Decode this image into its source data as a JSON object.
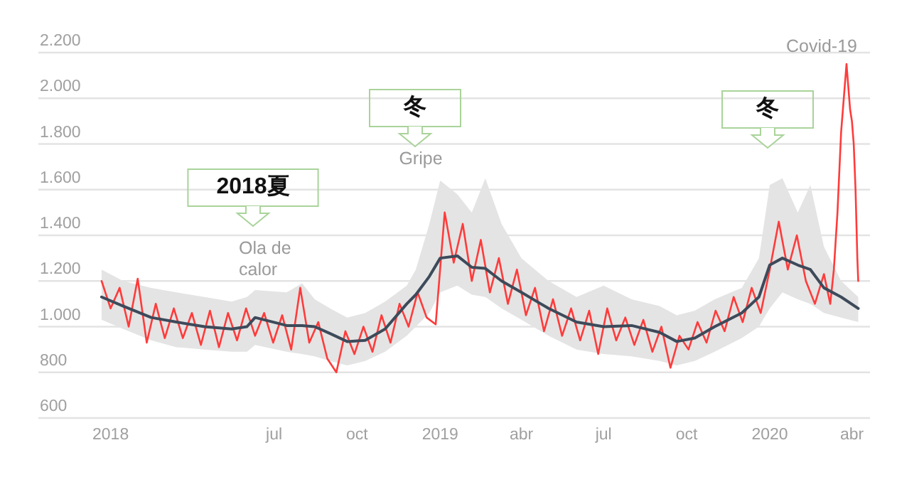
{
  "chart_data": {
    "type": "line",
    "xlim": [
      "2017-10-13",
      "2020-04-21"
    ],
    "ylim": [
      600,
      2200
    ],
    "xticks": [
      {
        "value": "2018-01-01",
        "label": "2018"
      },
      {
        "value": "2018-07-01",
        "label": "jul"
      },
      {
        "value": "2018-10-01",
        "label": "oct"
      },
      {
        "value": "2019-01-01",
        "label": "2019"
      },
      {
        "value": "2019-04-01",
        "label": "abr"
      },
      {
        "value": "2019-07-01",
        "label": "jul"
      },
      {
        "value": "2019-10-01",
        "label": "oct"
      },
      {
        "value": "2020-01-01",
        "label": "2020"
      },
      {
        "value": "2020-04-01",
        "label": "abr"
      }
    ],
    "yticks": [
      600,
      800,
      {
        "value": 1000,
        "label": "1.000"
      },
      {
        "value": 1200,
        "label": "1.200"
      },
      {
        "value": 1400,
        "label": "1.400"
      },
      {
        "value": 1600,
        "label": "1.600"
      },
      {
        "value": 1800,
        "label": "1.800"
      },
      {
        "value": 2000,
        "label": "2.000"
      },
      {
        "value": 2200,
        "label": "2.200"
      }
    ],
    "grid": "y",
    "annotations": [
      "2018夏",
      "Ola de calor",
      "冬",
      "Gripe",
      "冬",
      "Covid-19"
    ],
    "series": [
      {
        "color": "#ff3b3b",
        "x": [
          "2017-12-22",
          "2018-01-01",
          "2018-01-11",
          "2018-01-21",
          "2018-01-31",
          "2018-02-10",
          "2018-02-20",
          "2018-03-02",
          "2018-03-12",
          "2018-03-22",
          "2018-04-01",
          "2018-04-11",
          "2018-04-21",
          "2018-05-01",
          "2018-05-11",
          "2018-05-21",
          "2018-05-31",
          "2018-06-10",
          "2018-06-20",
          "2018-06-30",
          "2018-07-10",
          "2018-07-20",
          "2018-07-30",
          "2018-08-09",
          "2018-08-19",
          "2018-08-29",
          "2018-09-08",
          "2018-09-18",
          "2018-09-28",
          "2018-10-08",
          "2018-10-18",
          "2018-10-28",
          "2018-11-07",
          "2018-11-17",
          "2018-11-27",
          "2018-12-07",
          "2018-12-17",
          "2018-12-27",
          "2019-01-06",
          "2019-01-16",
          "2019-01-26",
          "2019-02-05",
          "2019-02-15",
          "2019-02-25",
          "2019-03-07",
          "2019-03-17",
          "2019-03-27",
          "2019-04-06",
          "2019-04-16",
          "2019-04-26",
          "2019-05-06",
          "2019-05-16",
          "2019-05-26",
          "2019-06-05",
          "2019-06-15",
          "2019-06-25",
          "2019-07-05",
          "2019-07-15",
          "2019-07-25",
          "2019-08-04",
          "2019-08-14",
          "2019-08-24",
          "2019-09-03",
          "2019-09-13",
          "2019-09-23",
          "2019-10-03",
          "2019-10-13",
          "2019-10-23",
          "2019-11-02",
          "2019-11-12",
          "2019-11-22",
          "2019-12-02",
          "2019-12-12",
          "2019-12-22",
          "2020-01-01",
          "2020-01-11",
          "2020-01-21",
          "2020-01-31",
          "2020-02-10",
          "2020-02-20",
          "2020-03-01",
          "2020-03-08",
          "2020-03-12",
          "2020-03-16",
          "2020-03-20",
          "2020-03-24",
          "2020-03-26",
          "2020-03-28",
          "2020-03-30",
          "2020-04-01",
          "2020-04-03",
          "2020-04-05",
          "2020-04-07",
          "2020-04-08"
        ],
        "values": [
          1200,
          1080,
          1170,
          1000,
          1210,
          930,
          1100,
          950,
          1080,
          950,
          1060,
          920,
          1070,
          910,
          1060,
          940,
          1080,
          960,
          1060,
          930,
          1050,
          900,
          1170,
          930,
          1020,
          860,
          800,
          980,
          880,
          1000,
          890,
          1050,
          930,
          1100,
          1000,
          1150,
          1040,
          1010,
          1500,
          1280,
          1450,
          1200,
          1380,
          1150,
          1300,
          1100,
          1250,
          1050,
          1170,
          980,
          1120,
          960,
          1080,
          940,
          1070,
          880,
          1080,
          940,
          1040,
          920,
          1030,
          890,
          1000,
          820,
          960,
          900,
          1020,
          930,
          1070,
          980,
          1130,
          1020,
          1170,
          1060,
          1250,
          1460,
          1250,
          1400,
          1200,
          1100,
          1230,
          1100,
          1250,
          1500,
          1850,
          2050,
          2150,
          2050,
          1950,
          1900,
          1800,
          1600,
          1300,
          1200
        ]
      },
      {
        "color": "#3d4a5a",
        "x": [
          "2017-12-22",
          "2018-01-15",
          "2018-02-15",
          "2018-03-15",
          "2018-04-15",
          "2018-05-15",
          "2018-06-01",
          "2018-06-10",
          "2018-07-15",
          "2018-08-01",
          "2018-08-15",
          "2018-09-01",
          "2018-09-20",
          "2018-10-10",
          "2018-11-01",
          "2018-11-25",
          "2018-12-05",
          "2018-12-20",
          "2019-01-01",
          "2019-01-20",
          "2019-02-05",
          "2019-02-20",
          "2019-03-10",
          "2019-04-01",
          "2019-05-01",
          "2019-06-01",
          "2019-07-01",
          "2019-08-01",
          "2019-09-01",
          "2019-09-20",
          "2019-10-10",
          "2019-11-01",
          "2019-12-01",
          "2019-12-20",
          "2020-01-01",
          "2020-01-15",
          "2020-02-01",
          "2020-02-15",
          "2020-03-01",
          "2020-03-20",
          "2020-04-08"
        ],
        "values": [
          1130,
          1090,
          1040,
          1020,
          1000,
          990,
          1000,
          1040,
          1005,
          1005,
          1000,
          970,
          935,
          940,
          990,
          1100,
          1140,
          1220,
          1300,
          1310,
          1260,
          1255,
          1200,
          1150,
          1080,
          1020,
          1000,
          1005,
          975,
          935,
          950,
          1000,
          1060,
          1130,
          1270,
          1300,
          1270,
          1250,
          1170,
          1130,
          1080
        ],
        "lower": [
          1030,
          990,
          940,
          910,
          900,
          890,
          890,
          920,
          890,
          880,
          870,
          850,
          830,
          850,
          890,
          960,
          1000,
          1060,
          1150,
          1180,
          1140,
          1130,
          1080,
          1030,
          960,
          900,
          880,
          870,
          850,
          830,
          850,
          890,
          950,
          1000,
          1080,
          1150,
          1120,
          1100,
          1060,
          1040,
          1020
        ],
        "upper": [
          1250,
          1200,
          1170,
          1150,
          1130,
          1110,
          1130,
          1160,
          1150,
          1190,
          1120,
          1080,
          1040,
          1060,
          1110,
          1180,
          1250,
          1450,
          1640,
          1580,
          1500,
          1650,
          1450,
          1300,
          1200,
          1130,
          1180,
          1120,
          1090,
          1050,
          1070,
          1120,
          1170,
          1300,
          1620,
          1650,
          1500,
          1620,
          1350,
          1200,
          1130
        ]
      }
    ]
  }
}
